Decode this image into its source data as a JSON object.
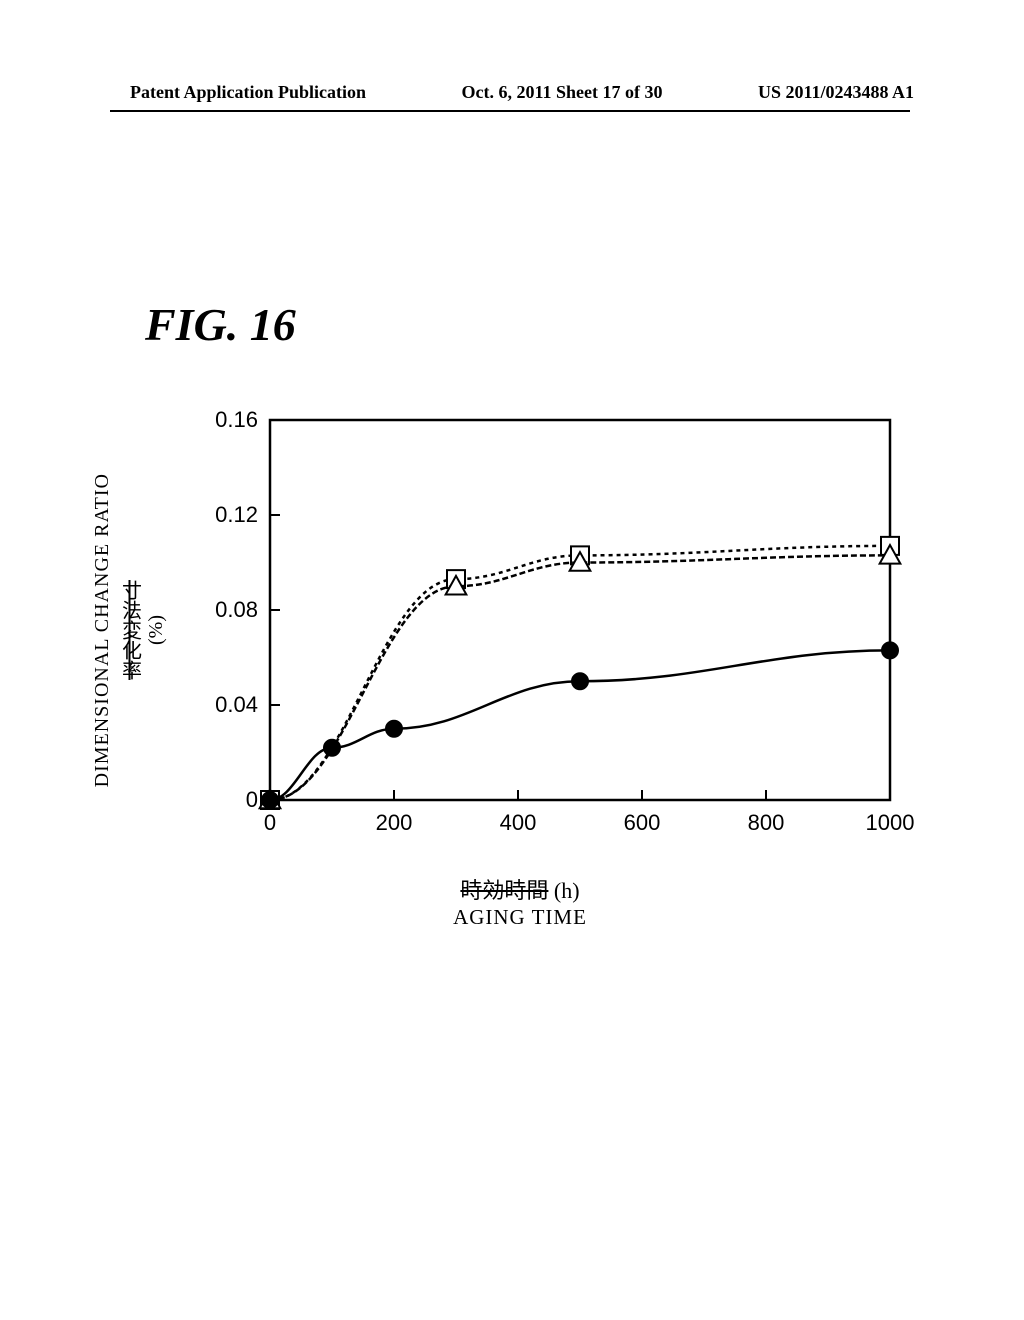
{
  "header": {
    "left": "Patent Application Publication",
    "center": "Oct. 6, 2011  Sheet 17 of 30",
    "right": "US 2011/0243488 A1"
  },
  "figure_label": "FIG. 16",
  "chart": {
    "type": "line",
    "ylabel_en": "DIMENSIONAL CHANGE RATIO",
    "ylabel_jp": "寸法変化率",
    "ylabel_unit": "(%)",
    "xlabel_jp": "時効時間",
    "xlabel_unit": "(h)",
    "xlabel_en": "AGING TIME",
    "xlim": [
      0,
      1000
    ],
    "ylim": [
      0,
      0.16
    ],
    "xticks": [
      0,
      200,
      400,
      600,
      800,
      1000
    ],
    "yticks": [
      0,
      0.04,
      0.08,
      0.12,
      0.16
    ],
    "ytick_labels": [
      "0",
      "0.04",
      "0.08",
      "0.12",
      "0.16"
    ],
    "xtick_labels": [
      "0",
      "200",
      "400",
      "600",
      "800",
      "1000"
    ],
    "background_color": "#ffffff",
    "axis_color": "#000000",
    "line_width": 2.5,
    "series": [
      {
        "name": "square",
        "marker": "square",
        "marker_size": 18,
        "color": "#000000",
        "fill": "#ffffff",
        "dash": "4 4",
        "points": [
          {
            "x": 0,
            "y": 0.0
          },
          {
            "x": 300,
            "y": 0.093
          },
          {
            "x": 500,
            "y": 0.103
          },
          {
            "x": 1000,
            "y": 0.107
          }
        ]
      },
      {
        "name": "triangle",
        "marker": "triangle",
        "marker_size": 18,
        "color": "#000000",
        "fill": "#ffffff",
        "dash": "6 3",
        "points": [
          {
            "x": 0,
            "y": 0.0
          },
          {
            "x": 300,
            "y": 0.09
          },
          {
            "x": 500,
            "y": 0.1
          },
          {
            "x": 1000,
            "y": 0.103
          }
        ]
      },
      {
        "name": "circle",
        "marker": "circle",
        "marker_size": 16,
        "color": "#000000",
        "fill": "#000000",
        "dash": "none",
        "points": [
          {
            "x": 0,
            "y": 0.0
          },
          {
            "x": 100,
            "y": 0.022
          },
          {
            "x": 200,
            "y": 0.03
          },
          {
            "x": 500,
            "y": 0.05
          },
          {
            "x": 1000,
            "y": 0.063
          }
        ]
      }
    ]
  }
}
